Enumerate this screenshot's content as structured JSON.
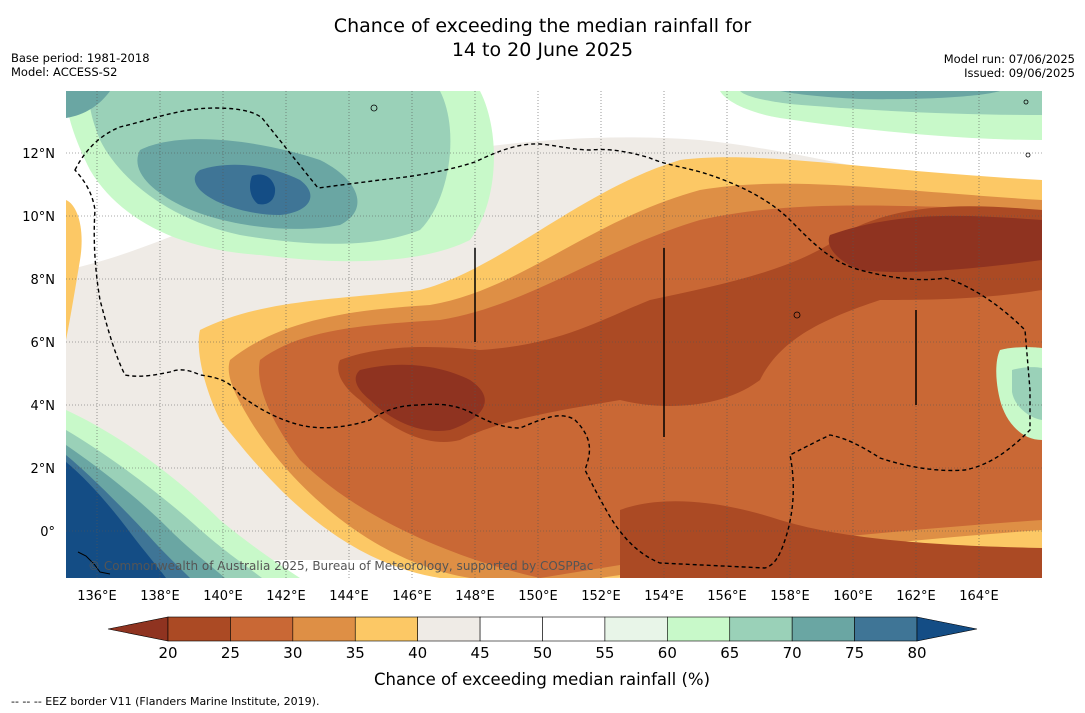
{
  "title_line1": "Chance of exceeding the median rainfall for",
  "title_line2": "14 to 20 June 2025",
  "base_period": "Base period: 1981-2018",
  "model": "Model: ACCESS-S2",
  "model_run": "Model run: 07/06/2025",
  "issued": "Issued: 09/06/2025",
  "copyright": "© Commonwealth of Australia 2025, Bureau of Meteorology, supported by COSPPac",
  "footer": "-- -- -- EEZ border V11 (Flanders Marine Institute, 2019).",
  "lon_ticks": [
    "136°E",
    "138°E",
    "140°E",
    "142°E",
    "144°E",
    "146°E",
    "148°E",
    "150°E",
    "152°E",
    "154°E",
    "156°E",
    "158°E",
    "160°E",
    "162°E",
    "164°E"
  ],
  "lat_ticks": [
    "12°N",
    "10°N",
    "8°N",
    "6°N",
    "4°N",
    "2°N",
    "0°"
  ],
  "colorbar": {
    "title": "Chance of exceeding median rainfall (%)",
    "labels": [
      "20",
      "25",
      "30",
      "35",
      "40",
      "45",
      "50",
      "55",
      "60",
      "65",
      "70",
      "75",
      "80"
    ],
    "colors": [
      "#ab4a24",
      "#c96835",
      "#de8f45",
      "#fcc865",
      "#efebe6",
      "#ffffff",
      "#ffffff",
      "#e8f5e8",
      "#c8f9c9",
      "#9ad1b8",
      "#6aa6a3",
      "#3f7596"
    ],
    "under_color": "#8f3320",
    "over_color": "#144d85"
  }
}
